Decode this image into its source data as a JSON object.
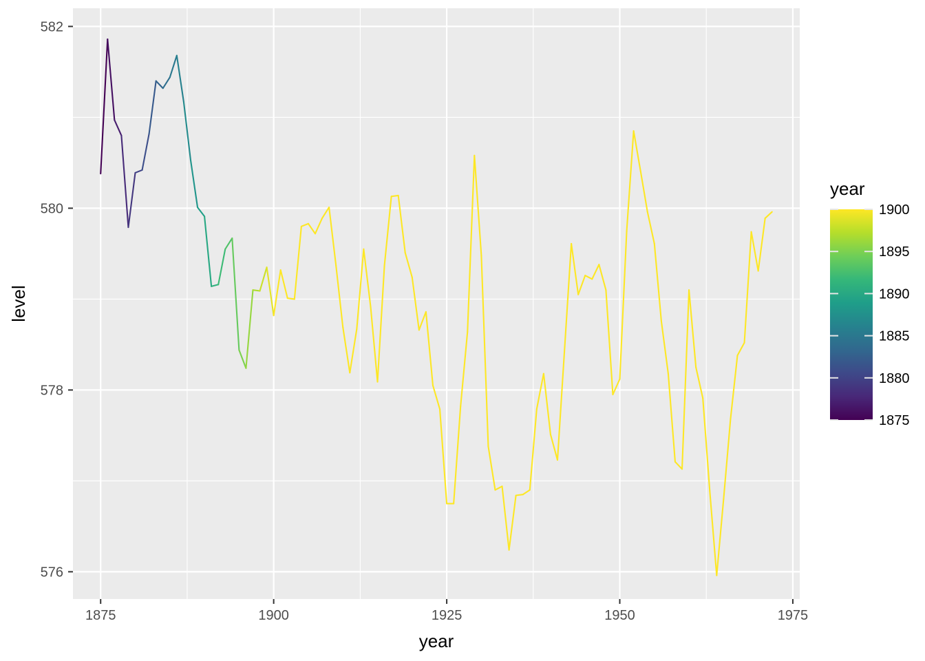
{
  "chart_data": {
    "type": "line",
    "title": "",
    "xlabel": "year",
    "ylabel": "level",
    "xlim": [
      1871,
      1976
    ],
    "ylim": [
      575.7,
      582.2
    ],
    "x_ticks": [
      1875,
      1900,
      1925,
      1950,
      1975
    ],
    "y_ticks": [
      576,
      578,
      580,
      582
    ],
    "x_tick_labels": [
      "1875",
      "1900",
      "1925",
      "1950",
      "1975"
    ],
    "y_tick_labels": [
      "576",
      "578",
      "580",
      "582"
    ],
    "grid": true,
    "color_scale": {
      "title": "year",
      "palette": "viridis",
      "limits": [
        1875,
        1900
      ],
      "breaks": [
        1900,
        1895,
        1890,
        1885,
        1880,
        1875
      ],
      "break_labels": [
        "1900",
        "1895",
        "1890",
        "1885",
        "1880",
        "1875"
      ],
      "legend_position": "right",
      "colors": [
        "#440154",
        "#482878",
        "#3e4989",
        "#31688e",
        "#26828e",
        "#1f9e89",
        "#35b779",
        "#6ece58",
        "#b5de2b",
        "#fde725"
      ]
    },
    "series": [
      {
        "x": [
          1875,
          1876,
          1877,
          1878,
          1879,
          1880,
          1881,
          1882,
          1883,
          1884,
          1885,
          1886,
          1887,
          1888,
          1889,
          1890,
          1891,
          1892,
          1893,
          1894,
          1895,
          1896,
          1897,
          1898,
          1899,
          1900,
          1901,
          1902,
          1903,
          1904,
          1905,
          1906,
          1907,
          1908,
          1909,
          1910,
          1911,
          1912,
          1913,
          1914,
          1915,
          1916,
          1917,
          1918,
          1919,
          1920,
          1921,
          1922,
          1923,
          1924,
          1925,
          1926,
          1927,
          1928,
          1929,
          1930,
          1931,
          1932,
          1933,
          1934,
          1935,
          1936,
          1937,
          1938,
          1939,
          1940,
          1941,
          1942,
          1943,
          1944,
          1945,
          1946,
          1947,
          1948,
          1949,
          1950,
          1951,
          1952,
          1953,
          1954,
          1955,
          1956,
          1957,
          1958,
          1959,
          1960,
          1961,
          1962,
          1963,
          1964,
          1965,
          1966,
          1967,
          1968,
          1969,
          1970,
          1971,
          1972
        ],
        "values": [
          580.38,
          581.86,
          580.97,
          580.8,
          579.79,
          580.39,
          580.42,
          580.82,
          581.4,
          581.32,
          581.44,
          581.68,
          581.17,
          580.53,
          580.01,
          579.91,
          579.14,
          579.16,
          579.55,
          579.67,
          578.44,
          578.24,
          579.1,
          579.09,
          579.35,
          578.82,
          579.32,
          579.01,
          579.0,
          579.8,
          579.83,
          579.72,
          579.89,
          580.01,
          579.37,
          578.69,
          578.19,
          578.67,
          579.55,
          578.92,
          578.09,
          579.37,
          580.13,
          580.14,
          579.51,
          579.24,
          578.66,
          578.86,
          578.05,
          577.79,
          576.75,
          576.75,
          577.82,
          578.64,
          580.58,
          579.48,
          577.38,
          576.9,
          576.94,
          576.24,
          576.84,
          576.85,
          576.9,
          577.79,
          578.18,
          577.51,
          577.23,
          578.42,
          579.61,
          579.05,
          579.26,
          579.22,
          579.38,
          579.1,
          577.95,
          578.12,
          579.75,
          580.85,
          580.41,
          579.96,
          579.61,
          578.76,
          578.18,
          577.21,
          577.13,
          579.1,
          578.25,
          577.91,
          576.89,
          575.96,
          576.8,
          577.68,
          578.38,
          578.52,
          579.74,
          579.31,
          579.89,
          579.96
        ]
      }
    ]
  }
}
